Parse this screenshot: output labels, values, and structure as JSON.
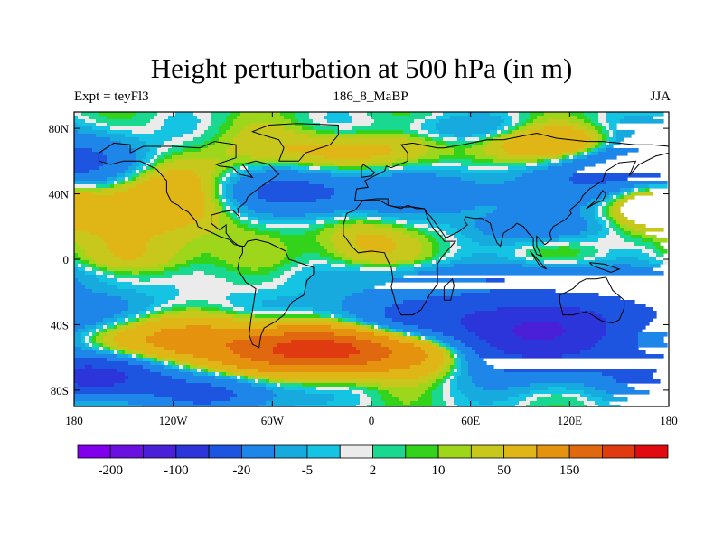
{
  "chart_data": {
    "type": "heatmap",
    "title": "Height perturbation at 500 hPa (in m)",
    "left_string": "Expt = teyFl3",
    "center_string": "186_8_MaBP",
    "right_string": "JJA",
    "xaxis": {
      "range": [
        -180,
        180
      ],
      "ticks": [
        {
          "value": -180,
          "label": "180"
        },
        {
          "value": -120,
          "label": "120W"
        },
        {
          "value": -60,
          "label": "60W"
        },
        {
          "value": 0,
          "label": "0"
        },
        {
          "value": 60,
          "label": "60E"
        },
        {
          "value": 120,
          "label": "120E"
        },
        {
          "value": 180,
          "label": "180"
        }
      ]
    },
    "yaxis": {
      "range": [
        -90,
        90
      ],
      "ticks": [
        {
          "value": 80,
          "label": "80N"
        },
        {
          "value": 40,
          "label": "40N"
        },
        {
          "value": 0,
          "label": "0"
        },
        {
          "value": -40,
          "label": "40S"
        },
        {
          "value": -80,
          "label": "80S"
        }
      ]
    },
    "colorbar": {
      "colors": [
        "#8000ee",
        "#6a10e0",
        "#4a1fd8",
        "#2b35da",
        "#1d55e0",
        "#1e86e8",
        "#17aadf",
        "#14c4e2",
        "#ebebeb",
        "#19d890",
        "#33d21b",
        "#9ed61b",
        "#c8c81c",
        "#e0b516",
        "#e5930e",
        "#e06910",
        "#e03a10",
        "#e00a10"
      ],
      "labels": [
        {
          "boundary": 1,
          "text": "-200"
        },
        {
          "boundary": 3,
          "text": "-100"
        },
        {
          "boundary": 5,
          "text": "-20"
        },
        {
          "boundary": 7,
          "text": "-5"
        },
        {
          "boundary": 9,
          "text": "2"
        },
        {
          "boundary": 11,
          "text": "10"
        },
        {
          "boundary": 13,
          "text": "50"
        },
        {
          "boundary": 15,
          "text": "150"
        }
      ]
    },
    "field_blobs": [
      {
        "lon": -150,
        "lat": -48,
        "sx": 55,
        "sy": 10,
        "amp": 85
      },
      {
        "lon": -25,
        "lat": -55,
        "sx": 45,
        "sy": 10,
        "amp": 210
      },
      {
        "lon": 40,
        "lat": -55,
        "sx": 22,
        "sy": 12,
        "amp": 55
      },
      {
        "lon": -165,
        "lat": -72,
        "sx": 25,
        "sy": 8,
        "amp": -120
      },
      {
        "lon": -95,
        "lat": -82,
        "sx": 30,
        "sy": 8,
        "amp": -60
      },
      {
        "lon": 95,
        "lat": -45,
        "sx": 75,
        "sy": 16,
        "amp": -170
      },
      {
        "lon": 90,
        "lat": -10,
        "sx": 70,
        "sy": 5,
        "amp": -30
      },
      {
        "lon": 30,
        "lat": 40,
        "sx": 55,
        "sy": 10,
        "amp": -40
      },
      {
        "lon": 100,
        "lat": 20,
        "sx": 25,
        "sy": 6,
        "amp": -45
      },
      {
        "lon": -50,
        "lat": 42,
        "sx": 30,
        "sy": 10,
        "amp": -55
      },
      {
        "lon": -165,
        "lat": 60,
        "sx": 25,
        "sy": 12,
        "amp": -55
      },
      {
        "lon": 150,
        "lat": 55,
        "sx": 30,
        "sy": 14,
        "amp": -75
      },
      {
        "lon": -140,
        "lat": 40,
        "sx": 40,
        "sy": 18,
        "amp": 45
      },
      {
        "lon": -20,
        "lat": 65,
        "sx": 35,
        "sy": 10,
        "amp": 30
      },
      {
        "lon": 115,
        "lat": 70,
        "sx": 30,
        "sy": 8,
        "amp": 60
      },
      {
        "lon": 170,
        "lat": 35,
        "sx": 20,
        "sy": 10,
        "amp": 45
      },
      {
        "lon": -5,
        "lat": 10,
        "sx": 20,
        "sy": 12,
        "amp": 25
      },
      {
        "lon": -130,
        "lat": 0,
        "sx": 25,
        "sy": 10,
        "amp": 15
      },
      {
        "lon": 50,
        "lat": 80,
        "sx": 40,
        "sy": 6,
        "amp": -18
      }
    ],
    "coastlines": [
      [
        [
          -146,
          65
        ],
        [
          -138,
          69
        ],
        [
          -120,
          69
        ],
        [
          -104,
          68
        ],
        [
          -95,
          72
        ],
        [
          -82,
          70
        ],
        [
          -82,
          62
        ],
        [
          -94,
          58
        ],
        [
          -92,
          57
        ],
        [
          -84,
          56
        ],
        [
          -80,
          52
        ],
        [
          -72,
          50
        ],
        [
          -78,
          58
        ],
        [
          -70,
          60
        ],
        [
          -62,
          58
        ],
        [
          -56,
          52
        ],
        [
          -66,
          45
        ],
        [
          -70,
          42
        ],
        [
          -75,
          38
        ],
        [
          -76,
          35
        ],
        [
          -81,
          31
        ],
        [
          -80,
          26
        ],
        [
          -84,
          30
        ],
        [
          -90,
          29
        ],
        [
          -97,
          27
        ],
        [
          -97,
          22
        ],
        [
          -92,
          18
        ],
        [
          -88,
          21
        ],
        [
          -88,
          16
        ],
        [
          -84,
          11
        ],
        [
          -80,
          8
        ],
        [
          -77,
          8
        ],
        [
          -75,
          11
        ],
        [
          -70,
          12
        ],
        [
          -62,
          10
        ],
        [
          -52,
          5
        ],
        [
          -50,
          0
        ],
        [
          -44,
          -2
        ],
        [
          -35,
          -5
        ],
        [
          -35,
          -9
        ],
        [
          -39,
          -13
        ],
        [
          -41,
          -22
        ],
        [
          -48,
          -26
        ],
        [
          -53,
          -34
        ],
        [
          -58,
          -38
        ],
        [
          -65,
          -42
        ],
        [
          -67,
          -47
        ],
        [
          -68,
          -54
        ],
        [
          -72,
          -52
        ],
        [
          -74,
          -46
        ],
        [
          -73,
          -37
        ],
        [
          -71,
          -25
        ],
        [
          -70,
          -18
        ],
        [
          -76,
          -14
        ],
        [
          -81,
          -6
        ],
        [
          -80,
          0
        ],
        [
          -78,
          4
        ],
        [
          -78,
          8
        ],
        [
          -83,
          9
        ],
        [
          -86,
          12
        ],
        [
          -92,
          14
        ],
        [
          -96,
          16
        ],
        [
          -105,
          20
        ],
        [
          -106,
          23
        ],
        [
          -111,
          29
        ],
        [
          -115,
          31
        ],
        [
          -117,
          33
        ],
        [
          -121,
          35
        ],
        [
          -124,
          41
        ],
        [
          -124,
          48
        ],
        [
          -130,
          55
        ],
        [
          -140,
          60
        ],
        [
          -150,
          60
        ],
        [
          -158,
          58
        ],
        [
          -165,
          60
        ],
        [
          -165,
          65
        ],
        [
          -156,
          71
        ],
        [
          -146,
          70
        ],
        [
          -146,
          65
        ]
      ],
      [
        [
          -56,
          60
        ],
        [
          -44,
          60
        ],
        [
          -40,
          65
        ],
        [
          -25,
          70
        ],
        [
          -20,
          76
        ],
        [
          -20,
          82
        ],
        [
          -45,
          83
        ],
        [
          -62,
          82
        ],
        [
          -72,
          78
        ],
        [
          -66,
          76
        ],
        [
          -56,
          73
        ],
        [
          -53,
          68
        ],
        [
          -56,
          60
        ]
      ],
      [
        [
          -10,
          36
        ],
        [
          -9,
          43
        ],
        [
          -2,
          44
        ],
        [
          -4,
          48
        ],
        [
          2,
          51
        ],
        [
          8,
          54
        ],
        [
          9,
          57
        ],
        [
          12,
          56
        ],
        [
          22,
          60
        ],
        [
          22,
          65
        ],
        [
          18,
          70
        ],
        [
          25,
          71
        ],
        [
          40,
          68
        ],
        [
          44,
          68
        ],
        [
          55,
          70
        ],
        [
          70,
          73
        ],
        [
          80,
          73
        ],
        [
          100,
          77
        ],
        [
          112,
          74
        ],
        [
          130,
          72
        ],
        [
          140,
          72
        ],
        [
          160,
          70
        ],
        [
          170,
          70
        ],
        [
          180,
          69
        ],
        [
          180,
          65
        ],
        [
          172,
          63
        ],
        [
          162,
          58
        ],
        [
          156,
          51
        ],
        [
          160,
          60
        ],
        [
          150,
          59
        ],
        [
          142,
          54
        ],
        [
          140,
          48
        ],
        [
          132,
          43
        ],
        [
          128,
          39
        ],
        [
          126,
          35
        ],
        [
          120,
          30
        ],
        [
          121,
          28
        ],
        [
          117,
          24
        ],
        [
          110,
          20
        ],
        [
          108,
          16
        ],
        [
          109,
          12
        ],
        [
          105,
          9
        ],
        [
          102,
          12
        ],
        [
          100,
          14
        ],
        [
          100,
          8
        ],
        [
          103,
          2
        ],
        [
          100,
          3
        ],
        [
          98,
          8
        ],
        [
          98,
          13
        ],
        [
          95,
          16
        ],
        [
          92,
          20
        ],
        [
          88,
          22
        ],
        [
          86,
          20
        ],
        [
          80,
          16
        ],
        [
          78,
          8
        ],
        [
          76,
          10
        ],
        [
          73,
          18
        ],
        [
          72,
          22
        ],
        [
          67,
          25
        ],
        [
          62,
          25
        ],
        [
          57,
          26
        ],
        [
          56,
          24
        ],
        [
          58,
          21
        ],
        [
          53,
          17
        ],
        [
          45,
          13
        ],
        [
          43,
          16
        ],
        [
          36,
          26
        ],
        [
          34,
          28
        ],
        [
          32,
          31
        ],
        [
          27,
          31
        ],
        [
          22,
          33
        ],
        [
          18,
          31
        ],
        [
          10,
          33
        ],
        [
          10,
          37
        ],
        [
          3,
          37
        ],
        [
          -6,
          36
        ],
        [
          -10,
          36
        ]
      ],
      [
        [
          -17,
          21
        ],
        [
          -17,
          15
        ],
        [
          -12,
          8
        ],
        [
          -8,
          4
        ],
        [
          0,
          5
        ],
        [
          8,
          4
        ],
        [
          9,
          1
        ],
        [
          12,
          -5
        ],
        [
          13,
          -12
        ],
        [
          12,
          -17
        ],
        [
          15,
          -28
        ],
        [
          18,
          -34
        ],
        [
          25,
          -34
        ],
        [
          30,
          -31
        ],
        [
          33,
          -26
        ],
        [
          35,
          -22
        ],
        [
          40,
          -15
        ],
        [
          40,
          -10
        ],
        [
          40,
          -3
        ],
        [
          43,
          2
        ],
        [
          51,
          11
        ],
        [
          44,
          11
        ],
        [
          42,
          14
        ],
        [
          38,
          18
        ],
        [
          35,
          23
        ],
        [
          32,
          31
        ],
        [
          25,
          32
        ],
        [
          20,
          32
        ],
        [
          15,
          32
        ],
        [
          10,
          33
        ],
        [
          5,
          36
        ],
        [
          -5,
          36
        ],
        [
          -10,
          30
        ],
        [
          -15,
          28
        ],
        [
          -17,
          21
        ]
      ],
      [
        [
          44,
          -25
        ],
        [
          48,
          -25
        ],
        [
          50,
          -16
        ],
        [
          49,
          -12
        ],
        [
          44,
          -17
        ],
        [
          44,
          -25
        ]
      ],
      [
        [
          114,
          -22
        ],
        [
          114,
          -26
        ],
        [
          116,
          -34
        ],
        [
          122,
          -34
        ],
        [
          130,
          -32
        ],
        [
          135,
          -35
        ],
        [
          140,
          -38
        ],
        [
          146,
          -39
        ],
        [
          150,
          -37
        ],
        [
          153,
          -30
        ],
        [
          153,
          -25
        ],
        [
          146,
          -19
        ],
        [
          142,
          -11
        ],
        [
          136,
          -12
        ],
        [
          130,
          -12
        ],
        [
          126,
          -14
        ],
        [
          122,
          -18
        ],
        [
          114,
          -22
        ]
      ],
      [
        [
          -6,
          50
        ],
        [
          0,
          51
        ],
        [
          2,
          53
        ],
        [
          -2,
          56
        ],
        [
          -5,
          58
        ],
        [
          -6,
          56
        ],
        [
          -6,
          50
        ]
      ],
      [
        [
          130,
          31
        ],
        [
          135,
          34
        ],
        [
          140,
          36
        ],
        [
          142,
          40
        ],
        [
          140,
          42
        ],
        [
          136,
          36
        ],
        [
          130,
          31
        ]
      ],
      [
        [
          96,
          5
        ],
        [
          104,
          -4
        ],
        [
          106,
          -6
        ],
        [
          102,
          -4
        ],
        [
          96,
          5
        ]
      ],
      [
        [
          132,
          -2
        ],
        [
          141,
          -3
        ],
        [
          150,
          -6
        ],
        [
          145,
          -8
        ],
        [
          134,
          -4
        ],
        [
          132,
          -2
        ]
      ]
    ]
  }
}
